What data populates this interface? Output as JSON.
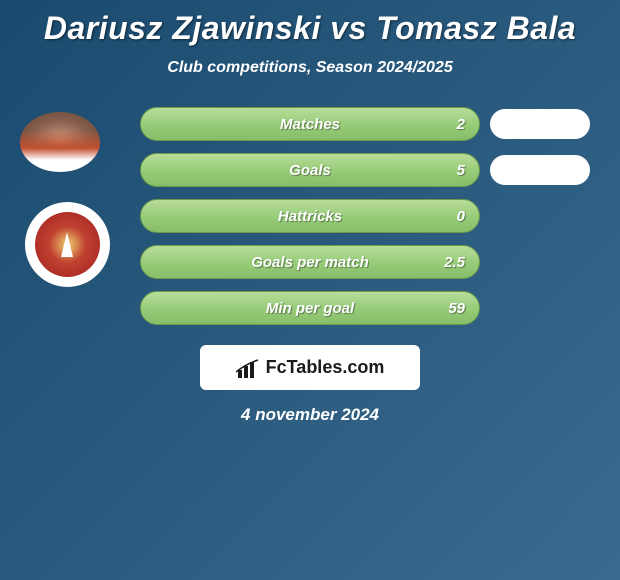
{
  "header": {
    "title": "Dariusz Zjawinski vs Tomasz Bala",
    "subtitle": "Club competitions, Season 2024/2025"
  },
  "stats": [
    {
      "label": "Matches",
      "value": "2",
      "show_pill": true
    },
    {
      "label": "Goals",
      "value": "5",
      "show_pill": true
    },
    {
      "label": "Hattricks",
      "value": "0",
      "show_pill": false
    },
    {
      "label": "Goals per match",
      "value": "2.5",
      "show_pill": false
    },
    {
      "label": "Min per goal",
      "value": "59",
      "show_pill": false
    }
  ],
  "brand": {
    "icon_name": "bar-chart-icon",
    "text": "FcTables.com"
  },
  "date": "4 november 2024",
  "styling": {
    "bg_gradient_start": "#1a4a6e",
    "bg_gradient_mid": "#2a5a7e",
    "bg_gradient_end": "#3a6a8e",
    "bar_gradient_top": "#b8dd9a",
    "bar_gradient_mid": "#98cd7a",
    "bar_gradient_bottom": "#88bd6a",
    "bar_border": "#6a9a4a",
    "text_color": "#ffffff",
    "brand_bg": "#ffffff",
    "brand_text_color": "#1a1a1a",
    "title_fontsize": 32,
    "subtitle_fontsize": 16,
    "stat_fontsize": 15,
    "date_fontsize": 17
  }
}
